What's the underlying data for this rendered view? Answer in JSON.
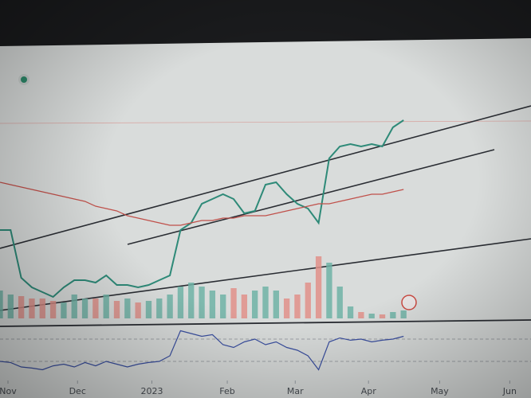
{
  "chart_data": [
    {
      "type": "line",
      "xlim": [
        0,
        50
      ],
      "ylim": [
        0,
        100
      ],
      "xticks": [
        {
          "value": 0.75,
          "label": "Nov"
        },
        {
          "value": 7.3,
          "label": "Dec"
        },
        {
          "value": 14.3,
          "label": "2023"
        },
        {
          "value": 21.4,
          "label": "Feb"
        },
        {
          "value": 27.8,
          "label": "Mar"
        },
        {
          "value": 34.7,
          "label": "Apr"
        },
        {
          "value": 41.4,
          "label": "May"
        },
        {
          "value": 48,
          "label": "Jun"
        }
      ],
      "x": [
        0,
        1,
        2,
        3,
        4,
        5,
        6,
        7,
        8,
        9,
        10,
        11,
        12,
        13,
        14,
        15,
        16,
        17,
        18,
        19,
        20,
        21,
        22,
        23,
        24,
        25,
        26,
        27,
        28,
        29,
        30,
        31,
        32,
        33,
        34,
        35,
        36,
        37,
        38
      ],
      "series": [
        {
          "color": "#2e8a78",
          "values": [
            47,
            47,
            27,
            23,
            21,
            19,
            23,
            26,
            26,
            25,
            28,
            24,
            24,
            23,
            24,
            26,
            28,
            47,
            50,
            58,
            60,
            62,
            60,
            54,
            55,
            66,
            67,
            62,
            58,
            56,
            50,
            77,
            82,
            83,
            82,
            83,
            82,
            90,
            93
          ]
        },
        {
          "color": "#c0504a",
          "values": [
            67,
            66,
            65,
            64,
            63,
            62,
            61,
            60,
            59,
            57,
            56,
            55,
            53,
            52,
            51,
            50,
            49,
            49,
            50,
            51,
            51,
            52,
            52,
            53,
            53,
            53,
            54,
            55,
            56,
            57,
            58,
            58,
            59,
            60,
            61,
            62,
            62,
            63,
            64
          ]
        }
      ]
    },
    {
      "type": "bar",
      "xlim": [
        0,
        50
      ],
      "ylim": [
        0,
        100
      ],
      "up_color": "#6fb3a6",
      "down_color": "#e0908a",
      "x": [
        0,
        1,
        2,
        3,
        4,
        5,
        6,
        7,
        8,
        9,
        10,
        11,
        12,
        13,
        14,
        15,
        16,
        17,
        18,
        19,
        20,
        21,
        22,
        23,
        24,
        25,
        26,
        27,
        28,
        29,
        30,
        31,
        32,
        33,
        34,
        35,
        36,
        37,
        38
      ],
      "values": [
        35,
        30,
        28,
        25,
        25,
        22,
        20,
        30,
        25,
        25,
        30,
        22,
        25,
        20,
        22,
        25,
        30,
        40,
        45,
        40,
        35,
        30,
        38,
        30,
        35,
        40,
        35,
        25,
        30,
        45,
        78,
        70,
        40,
        15,
        8,
        6,
        5,
        8,
        10
      ]
    },
    {
      "type": "line",
      "xlim": [
        0,
        50
      ],
      "ylim": [
        0,
        100
      ],
      "levels": [
        30,
        70
      ],
      "color": "#3a4fa0",
      "x": [
        0,
        1,
        2,
        3,
        4,
        5,
        6,
        7,
        8,
        9,
        10,
        11,
        12,
        13,
        14,
        15,
        16,
        17,
        18,
        19,
        20,
        21,
        22,
        23,
        24,
        25,
        26,
        27,
        28,
        29,
        30,
        31,
        32,
        33,
        34,
        35,
        36,
        37,
        38
      ],
      "values": [
        30,
        28,
        20,
        18,
        15,
        22,
        25,
        20,
        28,
        22,
        30,
        25,
        20,
        25,
        28,
        30,
        40,
        85,
        80,
        75,
        78,
        60,
        55,
        65,
        70,
        60,
        65,
        55,
        50,
        40,
        15,
        65,
        72,
        68,
        70,
        65,
        68,
        70,
        75
      ]
    }
  ]
}
